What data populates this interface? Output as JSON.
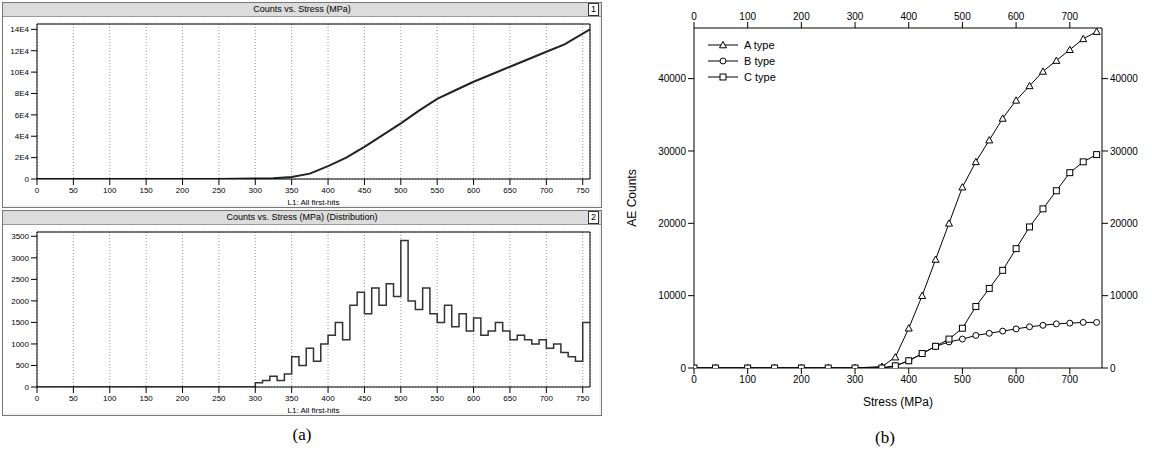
{
  "chart_data": [
    {
      "type": "line",
      "title": "Counts vs. Stress (MPa)",
      "x_label": "L1: All first-hits",
      "annotations": [
        "1"
      ],
      "x": [
        0,
        50,
        100,
        150,
        200,
        250,
        300,
        325,
        350,
        375,
        400,
        425,
        450,
        475,
        500,
        525,
        550,
        575,
        600,
        625,
        650,
        675,
        700,
        725,
        760
      ],
      "values": [
        0,
        0,
        0,
        0,
        0,
        100,
        400,
        800,
        1800,
        5000,
        12000,
        20000,
        30000,
        41000,
        52000,
        64000,
        75000,
        83000,
        91000,
        98000,
        105000,
        112000,
        119000,
        126000,
        140000
      ],
      "color": "#222222",
      "xlim": [
        0,
        760
      ],
      "xticks": [
        0,
        50,
        100,
        150,
        200,
        250,
        300,
        350,
        400,
        450,
        500,
        550,
        600,
        650,
        700,
        750
      ],
      "ylim": [
        0,
        145000
      ],
      "yticks": [
        0,
        {
          "value": 20000,
          "label": "2E4"
        },
        {
          "value": 40000,
          "label": "4E4"
        },
        {
          "value": 60000,
          "label": "6E4"
        },
        {
          "value": 80000,
          "label": "8E4"
        },
        {
          "value": 100000,
          "label": "10E4"
        },
        {
          "value": 120000,
          "label": "12E4"
        },
        {
          "value": 140000,
          "label": "14E4"
        }
      ],
      "grid": true
    },
    {
      "type": "histogram",
      "title": "Counts vs. Stress (MPa) (Distribution)",
      "x_label": "L1: All first-hits",
      "annotations": [
        "2",
        "(a)"
      ],
      "bins": [
        0,
        10,
        20,
        30,
        40,
        50,
        60,
        70,
        80,
        90,
        100,
        110,
        120,
        130,
        140,
        150,
        160,
        170,
        180,
        190,
        200,
        210,
        220,
        230,
        240,
        250,
        260,
        270,
        280,
        290,
        300,
        310,
        320,
        330,
        340,
        350,
        360,
        370,
        380,
        390,
        400,
        410,
        420,
        430,
        440,
        450,
        460,
        470,
        480,
        490,
        500,
        510,
        520,
        530,
        540,
        550,
        560,
        570,
        580,
        590,
        600,
        610,
        620,
        630,
        640,
        650,
        660,
        670,
        680,
        690,
        700,
        710,
        720,
        730,
        740,
        750,
        760
      ],
      "counts": [
        0,
        0,
        0,
        0,
        0,
        0,
        0,
        0,
        0,
        0,
        0,
        0,
        0,
        0,
        0,
        0,
        0,
        0,
        0,
        0,
        0,
        0,
        0,
        0,
        0,
        0,
        0,
        0,
        0,
        0,
        100,
        150,
        250,
        150,
        300,
        700,
        500,
        900,
        600,
        1000,
        1200,
        1500,
        1100,
        1900,
        2200,
        1700,
        2300,
        1900,
        2400,
        2100,
        3400,
        2000,
        1800,
        2300,
        1700,
        1500,
        1900,
        1400,
        1700,
        1300,
        1600,
        1200,
        1300,
        1500,
        1300,
        1100,
        1200,
        1100,
        1000,
        1100,
        900,
        1000,
        800,
        700,
        600,
        1500
      ],
      "color": "#333333",
      "xlim": [
        0,
        760
      ],
      "xticks": [
        0,
        50,
        100,
        150,
        200,
        250,
        300,
        350,
        400,
        450,
        500,
        550,
        600,
        650,
        700,
        750
      ],
      "ylim": [
        0,
        3600
      ],
      "yticks": [
        0,
        500,
        1000,
        1500,
        2000,
        2500,
        3000,
        3500
      ],
      "grid": true
    },
    {
      "type": "line",
      "x_label": "Stress (MPa)",
      "y_label": "AE Counts",
      "annotations": [
        "(b)"
      ],
      "x": [
        0,
        40,
        100,
        150,
        200,
        250,
        300,
        350,
        375,
        400,
        425,
        450,
        475,
        500,
        525,
        550,
        575,
        600,
        625,
        650,
        675,
        700,
        725,
        750
      ],
      "series": [
        {
          "name": "A type",
          "color": "#000000",
          "marker": "triangle",
          "values": [
            0,
            0,
            0,
            0,
            0,
            0,
            0,
            200,
            1500,
            5500,
            10000,
            15000,
            20000,
            25000,
            28500,
            31500,
            34500,
            37000,
            39000,
            41000,
            42500,
            44000,
            45500,
            46500
          ]
        },
        {
          "name": "B type",
          "color": "#000000",
          "marker": "circle",
          "values": [
            0,
            0,
            0,
            0,
            0,
            0,
            0,
            0,
            300,
            1000,
            2000,
            3000,
            3600,
            4000,
            4500,
            4800,
            5100,
            5400,
            5700,
            5900,
            6100,
            6200,
            6300,
            6300
          ]
        },
        {
          "name": "C type",
          "color": "#000000",
          "marker": "square",
          "values": [
            0,
            0,
            0,
            0,
            0,
            0,
            0,
            0,
            300,
            1000,
            2000,
            3000,
            4000,
            5500,
            8500,
            11000,
            13500,
            16500,
            19500,
            22000,
            24500,
            27000,
            28500,
            29500
          ]
        }
      ],
      "xlim": [
        0,
        760
      ],
      "xticks": [
        0,
        100,
        200,
        300,
        400,
        500,
        600,
        700
      ],
      "ylim": [
        0,
        47000
      ],
      "yticks": [
        0,
        10000,
        20000,
        30000,
        40000
      ],
      "legend": "upper left",
      "grid": false
    }
  ]
}
